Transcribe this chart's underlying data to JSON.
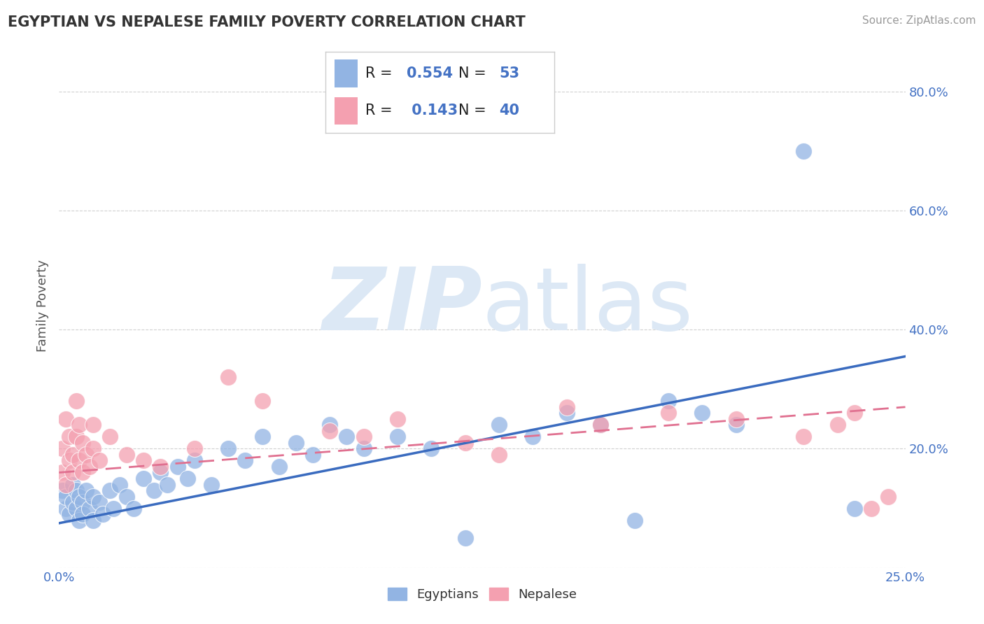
{
  "title": "EGYPTIAN VS NEPALESE FAMILY POVERTY CORRELATION CHART",
  "source_text": "Source: ZipAtlas.com",
  "ylabel": "Family Poverty",
  "x_range": [
    0.0,
    0.25
  ],
  "y_range": [
    0.0,
    0.88
  ],
  "x_ticks": [
    0.0,
    0.05,
    0.1,
    0.15,
    0.2,
    0.25
  ],
  "x_tick_labels": [
    "0.0%",
    "",
    "",
    "",
    "",
    "25.0%"
  ],
  "y_ticks": [
    0.0,
    0.2,
    0.4,
    0.6,
    0.8
  ],
  "y_tick_labels": [
    "",
    "20.0%",
    "40.0%",
    "60.0%",
    "80.0%"
  ],
  "egyptian_R": "0.554",
  "egyptian_N": "53",
  "nepalese_R": "0.143",
  "nepalese_N": "40",
  "egyptian_color": "#92b4e3",
  "nepalese_color": "#f4a0b0",
  "egyptian_line_color": "#3a6bbf",
  "nepalese_line_color": "#e07090",
  "watermark_color": "#dce8f5",
  "background_color": "#ffffff",
  "legend_text_color": "#4472c4",
  "grid_color": "#cccccc",
  "title_color": "#333333",
  "source_color": "#999999",
  "ylabel_color": "#555555",
  "tick_color": "#4472c4",
  "eg_trend_x0": 0.0,
  "eg_trend_y0": 0.075,
  "eg_trend_x1": 0.25,
  "eg_trend_y1": 0.355,
  "nep_trend_x0": 0.0,
  "nep_trend_y0": 0.16,
  "nep_trend_x1": 0.25,
  "nep_trend_y1": 0.27,
  "eg_x": [
    0.001,
    0.002,
    0.002,
    0.003,
    0.004,
    0.004,
    0.005,
    0.005,
    0.006,
    0.006,
    0.007,
    0.007,
    0.008,
    0.009,
    0.01,
    0.01,
    0.012,
    0.013,
    0.015,
    0.016,
    0.018,
    0.02,
    0.022,
    0.025,
    0.028,
    0.03,
    0.032,
    0.035,
    0.038,
    0.04,
    0.045,
    0.05,
    0.055,
    0.06,
    0.065,
    0.07,
    0.075,
    0.08,
    0.085,
    0.09,
    0.1,
    0.11,
    0.12,
    0.13,
    0.14,
    0.15,
    0.16,
    0.17,
    0.18,
    0.19,
    0.2,
    0.22,
    0.235
  ],
  "eg_y": [
    0.13,
    0.1,
    0.12,
    0.09,
    0.11,
    0.14,
    0.13,
    0.1,
    0.08,
    0.12,
    0.11,
    0.09,
    0.13,
    0.1,
    0.12,
    0.08,
    0.11,
    0.09,
    0.13,
    0.1,
    0.14,
    0.12,
    0.1,
    0.15,
    0.13,
    0.16,
    0.14,
    0.17,
    0.15,
    0.18,
    0.14,
    0.2,
    0.18,
    0.22,
    0.17,
    0.21,
    0.19,
    0.24,
    0.22,
    0.2,
    0.22,
    0.2,
    0.05,
    0.24,
    0.22,
    0.26,
    0.24,
    0.08,
    0.28,
    0.26,
    0.24,
    0.7,
    0.1
  ],
  "nep_x": [
    0.001,
    0.001,
    0.002,
    0.002,
    0.003,
    0.003,
    0.004,
    0.004,
    0.005,
    0.005,
    0.006,
    0.006,
    0.007,
    0.007,
    0.008,
    0.009,
    0.01,
    0.01,
    0.012,
    0.015,
    0.02,
    0.025,
    0.03,
    0.04,
    0.05,
    0.06,
    0.08,
    0.09,
    0.1,
    0.12,
    0.13,
    0.15,
    0.16,
    0.18,
    0.2,
    0.22,
    0.23,
    0.235,
    0.24,
    0.245
  ],
  "nep_y": [
    0.16,
    0.2,
    0.14,
    0.25,
    0.18,
    0.22,
    0.16,
    0.19,
    0.28,
    0.22,
    0.24,
    0.18,
    0.21,
    0.16,
    0.19,
    0.17,
    0.24,
    0.2,
    0.18,
    0.22,
    0.19,
    0.18,
    0.17,
    0.2,
    0.32,
    0.28,
    0.23,
    0.22,
    0.25,
    0.21,
    0.19,
    0.27,
    0.24,
    0.26,
    0.25,
    0.22,
    0.24,
    0.26,
    0.1,
    0.12
  ]
}
